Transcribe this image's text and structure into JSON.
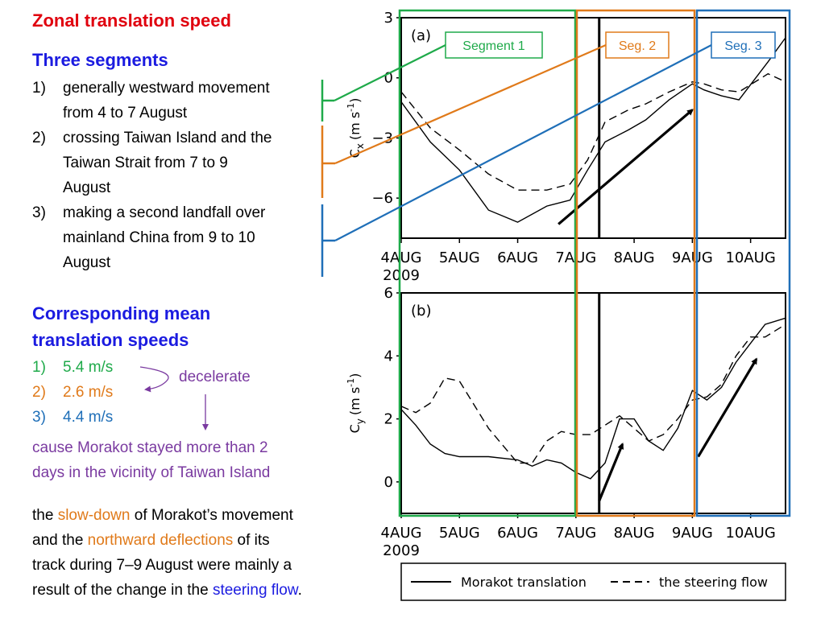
{
  "title": "Zonal translation speed",
  "segments_heading": "Three segments",
  "segments": [
    {
      "num": "1)",
      "lines": [
        "generally westward movement",
        "from 4 to 7 August"
      ]
    },
    {
      "num": "2)",
      "lines": [
        "crossing Taiwan Island and the",
        "Taiwan Strait from 7 to 9",
        "August"
      ]
    },
    {
      "num": "3)",
      "lines": [
        "making a second landfall over",
        "mainland China from 9 to 10",
        "August"
      ]
    }
  ],
  "speeds_heading": [
    "Corresponding mean",
    "translation speeds"
  ],
  "speeds": [
    {
      "num": "1)",
      "value": "5.4 m/s"
    },
    {
      "num": "2)",
      "value": "2.6 m/s"
    },
    {
      "num": "3)",
      "value": "4.4 m/s"
    }
  ],
  "decelerate_label": "decelerate",
  "cause_text": [
    "cause Morakot stayed more than 2",
    "days in the vicinity of Taiwan Island"
  ],
  "conclusion": {
    "p1": "the ",
    "slow": "slow-down",
    "p2": " of Morakot’s movement",
    "p3": "and the ",
    "north": "northward deflections",
    "p4": " of its",
    "p5": "track during 7–9 August were mainly a",
    "p6": "result of the change in the ",
    "steer": "steering flow",
    "p7": "."
  },
  "segment_labels": [
    "Segment 1",
    "Seg. 2",
    "Seg. 3"
  ],
  "colors": {
    "title": "#e0000e",
    "heading": "#1b1be0",
    "seg1": "#1faa4a",
    "seg2": "#e07a1a",
    "seg3": "#1f6fb8",
    "purple": "#7a3aa0"
  },
  "chart_data": [
    {
      "type": "line",
      "panel_label": "(a)",
      "ylabel": "Cx (m s-1)",
      "ylabel_main": "C",
      "ylabel_sub": "x",
      "ylabel_units": "(m s",
      "ylabel_exp": "-1",
      "ylim": [
        -8,
        3
      ],
      "yticks": [
        "3",
        "0",
        "−3",
        "−6"
      ],
      "ytick_values": [
        3,
        0,
        -3,
        -6
      ],
      "xlim": [
        0,
        6.6
      ],
      "xtick_labels": [
        "4AUG",
        "5AUG",
        "6AUG",
        "7AUG",
        "8AUG",
        "9AUG",
        "10AUG"
      ],
      "xtick_values": [
        0,
        1,
        2,
        3,
        4,
        5,
        6
      ],
      "x_year": "2009",
      "vline_x": 3.4,
      "series": [
        {
          "name": "Morakot translation",
          "style": "solid",
          "x": [
            0,
            0.5,
            1,
            1.5,
            2,
            2.5,
            2.9,
            3.2,
            3.5,
            3.9,
            4.2,
            4.6,
            5.0,
            5.2,
            5.5,
            5.8,
            6.3,
            6.6
          ],
          "y": [
            -1.2,
            -3.2,
            -4.6,
            -6.6,
            -7.2,
            -6.4,
            -6.1,
            -4.6,
            -3.2,
            -2.6,
            -2.1,
            -1.1,
            -0.3,
            -0.6,
            -0.9,
            -1.1,
            0.8,
            2.0
          ]
        },
        {
          "name": "the steering flow",
          "style": "dashed",
          "x": [
            0,
            0.5,
            1,
            1.5,
            2,
            2.5,
            2.9,
            3.2,
            3.5,
            3.9,
            4.2,
            4.6,
            5.0,
            5.2,
            5.5,
            5.8,
            6.3,
            6.6
          ],
          "y": [
            -0.7,
            -2.5,
            -3.6,
            -4.8,
            -5.6,
            -5.6,
            -5.3,
            -4.1,
            -2.2,
            -1.6,
            -1.3,
            -0.7,
            -0.2,
            -0.3,
            -0.6,
            -0.7,
            0.2,
            -0.2
          ]
        }
      ],
      "arrow": {
        "from": [
          2.7,
          -7.3
        ],
        "to": [
          5.0,
          -1.6
        ]
      }
    },
    {
      "type": "line",
      "panel_label": "(b)",
      "ylabel": "Cy (m s-1)",
      "ylabel_main": "C",
      "ylabel_sub": "y",
      "ylabel_units": "(m s",
      "ylabel_exp": "-1",
      "ylim": [
        -1.0,
        6
      ],
      "yticks": [
        "6",
        "4",
        "2",
        "0"
      ],
      "ytick_values": [
        6,
        4,
        2,
        0
      ],
      "xlim": [
        0,
        6.6
      ],
      "xtick_labels": [
        "4AUG",
        "5AUG",
        "6AUG",
        "7AUG",
        "8AUG",
        "9AUG",
        "10AUG"
      ],
      "xtick_values": [
        0,
        1,
        2,
        3,
        4,
        5,
        6
      ],
      "x_year": "2009",
      "vline_x": 3.4,
      "series": [
        {
          "name": "Morakot translation",
          "style": "solid",
          "x": [
            0,
            0.25,
            0.5,
            0.75,
            1,
            1.5,
            2,
            2.25,
            2.5,
            2.75,
            3,
            3.25,
            3.5,
            3.75,
            4,
            4.25,
            4.5,
            4.75,
            5,
            5.25,
            5.5,
            5.75,
            6,
            6.25,
            6.6
          ],
          "y": [
            2.3,
            1.8,
            1.2,
            0.9,
            0.8,
            0.8,
            0.7,
            0.5,
            0.7,
            0.6,
            0.3,
            0.1,
            0.6,
            2.0,
            2.0,
            1.3,
            1.0,
            1.7,
            2.9,
            2.6,
            3.0,
            3.8,
            4.4,
            5.0,
            5.2
          ]
        },
        {
          "name": "the steering flow",
          "style": "dashed",
          "x": [
            0,
            0.25,
            0.5,
            0.75,
            1,
            1.5,
            2,
            2.25,
            2.5,
            2.75,
            3,
            3.25,
            3.5,
            3.75,
            4,
            4.25,
            4.5,
            4.75,
            5,
            5.25,
            5.5,
            5.75,
            6,
            6.25,
            6.6
          ],
          "y": [
            2.4,
            2.2,
            2.5,
            3.3,
            3.2,
            1.7,
            0.6,
            0.6,
            1.3,
            1.6,
            1.5,
            1.5,
            1.8,
            2.1,
            1.7,
            1.3,
            1.5,
            2.0,
            2.6,
            2.7,
            3.1,
            4.0,
            4.6,
            4.6,
            5.0
          ]
        }
      ],
      "arrows": [
        {
          "from": [
            3.4,
            -0.6
          ],
          "to": [
            3.8,
            1.2
          ]
        },
        {
          "from": [
            5.1,
            0.8
          ],
          "to": [
            6.1,
            3.9
          ]
        }
      ]
    }
  ],
  "legend": [
    {
      "name": "Morakot translation",
      "style": "solid"
    },
    {
      "name": "the steering flow",
      "style": "dashed"
    }
  ]
}
